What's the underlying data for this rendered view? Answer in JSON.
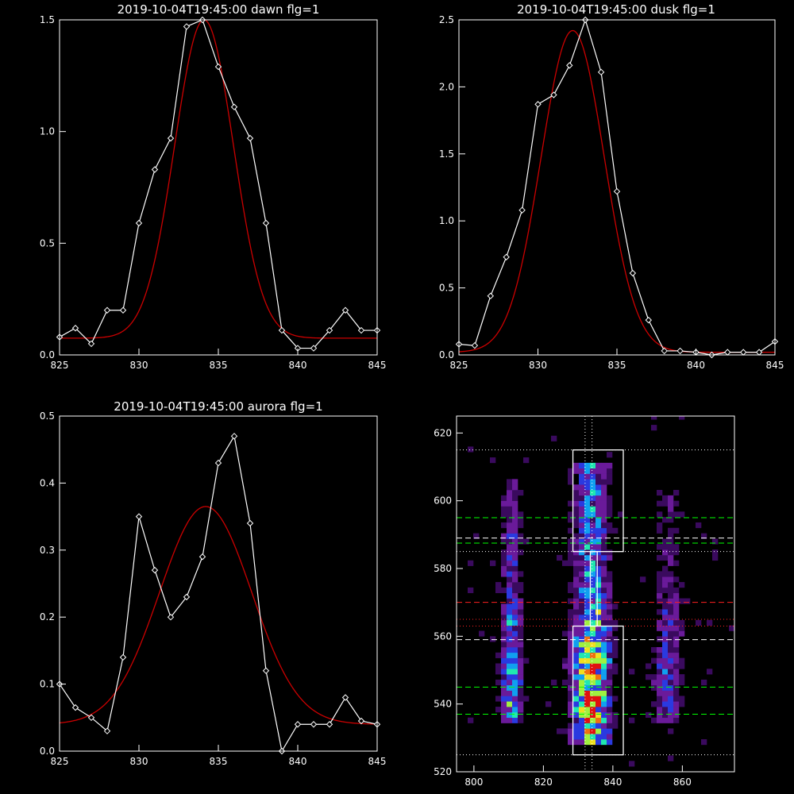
{
  "chart_data": [
    {
      "type": "line",
      "title": "2019-10-04T19:45:00 dawn flg=1",
      "xlim": [
        825,
        845
      ],
      "ylim": [
        0,
        1.5
      ],
      "xticks": [
        825,
        830,
        835,
        840,
        845
      ],
      "yticks": [
        0.0,
        0.5,
        1.0,
        1.5
      ],
      "xticklabels": [
        "825",
        "830",
        "835",
        "840",
        "845"
      ],
      "yticklabels": [
        "0.0",
        "0.5",
        "1.0",
        "1.5"
      ],
      "series": [
        {
          "kind": "data",
          "color": "#ffffff",
          "marker": "diamond",
          "x": [
            825,
            826,
            827,
            828,
            829,
            830,
            831,
            832,
            833,
            834,
            835,
            836,
            837,
            838,
            839,
            840,
            841,
            842,
            843,
            844,
            845
          ],
          "y": [
            0.08,
            0.12,
            0.05,
            0.2,
            0.2,
            0.59,
            0.83,
            0.97,
            1.47,
            1.5,
            1.29,
            1.11,
            0.97,
            0.59,
            0.11,
            0.03,
            0.03,
            0.11,
            0.2,
            0.11,
            0.11
          ]
        },
        {
          "kind": "fit",
          "color": "#cc0000",
          "peak_x": 834.1,
          "peak_y": 1.5,
          "sigma": 1.85,
          "baseline": 0.075,
          "baseline_slope": 0.0
        }
      ]
    },
    {
      "type": "line",
      "title": "2019-10-04T19:45:00 dusk flg=1",
      "xlim": [
        825,
        845
      ],
      "ylim": [
        0,
        2.5
      ],
      "xticks": [
        825,
        830,
        835,
        840,
        845
      ],
      "yticks": [
        0.0,
        0.5,
        1.0,
        1.5,
        2.0,
        2.5
      ],
      "xticklabels": [
        "825",
        "830",
        "835",
        "840",
        "845"
      ],
      "yticklabels": [
        "0.0",
        "0.5",
        "1.0",
        "1.5",
        "2.0",
        "2.5"
      ],
      "series": [
        {
          "kind": "data",
          "color": "#ffffff",
          "marker": "diamond",
          "x": [
            825,
            826,
            827,
            828,
            829,
            830,
            831,
            832,
            833,
            834,
            835,
            836,
            837,
            838,
            839,
            840,
            841,
            842,
            843,
            844,
            845
          ],
          "y": [
            0.08,
            0.07,
            0.44,
            0.73,
            1.08,
            1.87,
            1.94,
            2.16,
            2.5,
            2.11,
            1.22,
            0.61,
            0.26,
            0.03,
            0.03,
            0.02,
            0.0,
            0.02,
            0.02,
            0.02,
            0.1
          ]
        },
        {
          "kind": "fit",
          "color": "#cc0000",
          "peak_x": 832.2,
          "peak_y": 2.42,
          "sigma": 2.0,
          "baseline": 0.02,
          "baseline_slope": 0.0
        }
      ]
    },
    {
      "type": "line",
      "title": "2019-10-04T19:45:00 aurora flg=1",
      "xlim": [
        825,
        845
      ],
      "ylim": [
        0,
        0.5
      ],
      "xticks": [
        825,
        830,
        835,
        840,
        845
      ],
      "yticks": [
        0.0,
        0.1,
        0.2,
        0.3,
        0.4,
        0.5
      ],
      "xticklabels": [
        "825",
        "830",
        "835",
        "840",
        "845"
      ],
      "yticklabels": [
        "0.0",
        "0.1",
        "0.2",
        "0.3",
        "0.4",
        "0.5"
      ],
      "series": [
        {
          "kind": "data",
          "color": "#ffffff",
          "marker": "diamond",
          "x": [
            825,
            826,
            827,
            828,
            829,
            830,
            831,
            832,
            833,
            834,
            835,
            836,
            837,
            838,
            839,
            840,
            841,
            842,
            843,
            844,
            845
          ],
          "y": [
            0.1,
            0.065,
            0.05,
            0.03,
            0.14,
            0.35,
            0.27,
            0.2,
            0.23,
            0.29,
            0.43,
            0.47,
            0.34,
            0.12,
            0.0,
            0.04,
            0.04,
            0.04,
            0.08,
            0.045,
            0.04
          ]
        },
        {
          "kind": "fit",
          "color": "#cc0000",
          "peak_x": 834.2,
          "peak_y": 0.365,
          "sigma": 2.9,
          "baseline": 0.04,
          "baseline_slope": 0.0
        }
      ]
    },
    {
      "type": "heatmap",
      "xlim": [
        795,
        875
      ],
      "ylim": [
        520,
        625
      ],
      "xticks": [
        800,
        820,
        840,
        860
      ],
      "yticks": [
        520,
        540,
        560,
        580,
        600,
        620
      ],
      "xticklabels": [
        "800",
        "820",
        "840",
        "860"
      ],
      "yticklabels": [
        "520",
        "540",
        "560",
        "580",
        "600",
        "620"
      ],
      "colormap": [
        "#000000",
        "#3a0a5e",
        "#6a1a9a",
        "#2a3ae0",
        "#10a0f0",
        "#20e8b0",
        "#a0f040",
        "#f0e020",
        "#f07010",
        "#e01010"
      ],
      "columns": [
        {
          "x_center": 810,
          "width": 6,
          "y_from": 533,
          "y_to": 606,
          "peak_y": 545,
          "peak": 0.55
        },
        {
          "x_center": 833,
          "width": 10,
          "y_from": 527,
          "y_to": 611,
          "peak_y": 543,
          "peak": 0.95
        },
        {
          "x_center": 855,
          "width": 8,
          "y_from": 534,
          "y_to": 603,
          "peak_y": 546,
          "peak": 0.35
        }
      ],
      "boxes": [
        {
          "x0": 828.5,
          "x1": 843,
          "y0": 585,
          "y1": 615,
          "color": "#ffffff",
          "style": "solid"
        },
        {
          "x0": 828.5,
          "x1": 843,
          "y0": 525,
          "y1": 563,
          "color": "#ffffff",
          "style": "solid"
        },
        {
          "x0": 833.5,
          "x1": 835.5,
          "y0": 563,
          "y1": 585,
          "color": "#ffffff",
          "style": "solid"
        }
      ],
      "hlines": [
        {
          "y": 615,
          "color": "#ffffff",
          "style": "dotted"
        },
        {
          "y": 525,
          "color": "#ffffff",
          "style": "dotted"
        },
        {
          "y": 595,
          "color": "#00ff00",
          "style": "dashed"
        },
        {
          "y": 589,
          "color": "#ffffff",
          "style": "dashed"
        },
        {
          "y": 587.5,
          "color": "#00ff00",
          "style": "dashed"
        },
        {
          "y": 585,
          "color": "#ffffff",
          "style": "dotted"
        },
        {
          "y": 570,
          "color": "#ff2020",
          "style": "dashed"
        },
        {
          "y": 565,
          "color": "#ff2020",
          "style": "dotted"
        },
        {
          "y": 563,
          "color": "#ff2020",
          "style": "dotted"
        },
        {
          "y": 559,
          "color": "#ffffff",
          "style": "dashed"
        },
        {
          "y": 545,
          "color": "#00ff00",
          "style": "dashed"
        },
        {
          "y": 537,
          "color": "#00ff00",
          "style": "dashed"
        }
      ],
      "vlines": [
        {
          "x": 832,
          "color": "#ffffff",
          "style": "dotted"
        },
        {
          "x": 834,
          "color": "#ffffff",
          "style": "dotted"
        }
      ]
    }
  ]
}
